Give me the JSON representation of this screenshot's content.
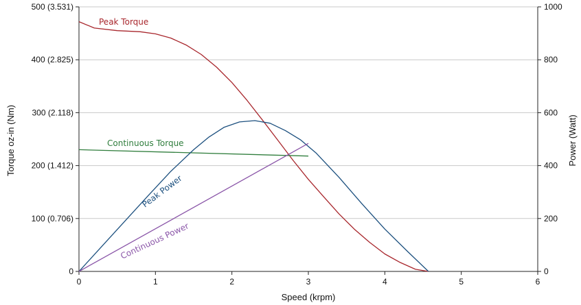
{
  "chart_data": {
    "type": "line",
    "title": "",
    "xlabel": "Speed (krpm)",
    "ylabel_left": "Torque oz-in (Nm)",
    "ylabel_right": "Power (Watt)",
    "xlim": [
      0,
      6
    ],
    "ylim_left": [
      0,
      500
    ],
    "ylim_right": [
      0,
      1000
    ],
    "grid": "horizontal",
    "legend": "none",
    "x_ticks": [
      "0",
      "1",
      "2",
      "3",
      "4",
      "5",
      "6"
    ],
    "y_left_ticks": [
      "0",
      "100 (0.706)",
      "200 (1.412)",
      "300 (2.118)",
      "400 (2.825)",
      "500 (3.531)"
    ],
    "y_right_ticks": [
      "0",
      "200",
      "400",
      "600",
      "800",
      "1000"
    ],
    "series": [
      {
        "name": "Peak Torque",
        "axis": "left",
        "color": "#a8262c",
        "x": [
          0,
          0.2,
          0.5,
          0.8,
          1.0,
          1.2,
          1.4,
          1.6,
          1.8,
          2.0,
          2.2,
          2.4,
          2.6,
          2.8,
          3.0,
          3.2,
          3.4,
          3.6,
          3.8,
          4.0,
          4.2,
          4.4,
          4.57
        ],
        "y": [
          472,
          460,
          455,
          453,
          449,
          441,
          428,
          410,
          386,
          357,
          323,
          286,
          248,
          210,
          174,
          141,
          109,
          80,
          55,
          33,
          17,
          4,
          0
        ]
      },
      {
        "name": "Continuous Torque",
        "axis": "left",
        "color": "#2f7d3c",
        "x": [
          0,
          3.0
        ],
        "y": [
          230,
          218
        ]
      },
      {
        "name": "Peak Power",
        "axis": "right",
        "color": "#1b4f7e",
        "x": [
          0,
          0.3,
          0.6,
          0.9,
          1.2,
          1.5,
          1.7,
          1.9,
          2.1,
          2.3,
          2.5,
          2.7,
          2.9,
          3.1,
          3.4,
          3.7,
          4.0,
          4.3,
          4.57
        ],
        "y": [
          0,
          95,
          190,
          285,
          378,
          460,
          508,
          545,
          565,
          570,
          560,
          532,
          497,
          448,
          356,
          256,
          160,
          75,
          0
        ]
      },
      {
        "name": "Continuous Power",
        "axis": "right",
        "color": "#8a55a8",
        "x": [
          0,
          3.0
        ],
        "y": [
          0,
          484
        ]
      }
    ]
  }
}
